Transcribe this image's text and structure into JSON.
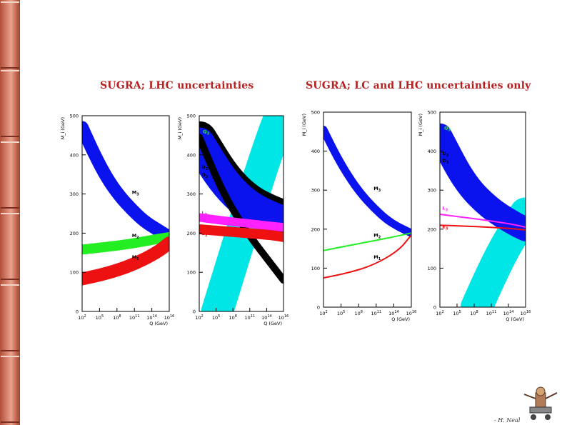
{
  "titles": {
    "left": "SUGRA; LHC uncertainties",
    "right": "SUGRA; LC and LHC uncertainties only"
  },
  "footer": {
    "credit": "- H. Neal"
  },
  "colors": {
    "blue": "#0a13ee",
    "green": "#22ee22",
    "red": "#ee1111",
    "cyan": "#00e6e6",
    "magenta": "#ff22ff",
    "black": "#000000",
    "title": "#b51f1f"
  },
  "chart_data": [
    {
      "type": "line",
      "title": "",
      "ylabel": "M_i (GeV)",
      "xlabel": "Q (GeV)",
      "xlog_range": [
        2,
        16
      ],
      "ylim": [
        0,
        500
      ],
      "xticks": [
        "10^2",
        "10^5",
        "10^8",
        "10^11",
        "10^14",
        "10^16"
      ],
      "yticks": [
        "0",
        "100",
        "200",
        "300",
        "400",
        "500"
      ],
      "series": [
        {
          "name": "M3",
          "color": "blue",
          "x": [
            2,
            4,
            6,
            8,
            10,
            12,
            14,
            16
          ],
          "values": [
            470,
            400,
            340,
            295,
            260,
            230,
            210,
            190
          ],
          "width": 18
        },
        {
          "name": "M2",
          "color": "green",
          "x": [
            2,
            6,
            10,
            14,
            16
          ],
          "values": [
            158,
            165,
            173,
            185,
            190
          ],
          "width": 14
        },
        {
          "name": "M1",
          "color": "red",
          "x": [
            2,
            6,
            10,
            14,
            16
          ],
          "values": [
            83,
            97,
            118,
            150,
            175
          ],
          "width": 18
        }
      ],
      "labels": [
        {
          "text": "M3",
          "x": 10,
          "y": 300,
          "color": "black"
        },
        {
          "text": "M2",
          "x": 10,
          "y": 190,
          "color": "black"
        },
        {
          "text": "M1",
          "x": 10,
          "y": 135,
          "color": "black"
        }
      ]
    },
    {
      "type": "line",
      "title": "",
      "ylabel": "M_i (GeV)",
      "xlabel": "Q (GeV)",
      "xlog_range": [
        2,
        16
      ],
      "ylim": [
        0,
        500
      ],
      "xticks": [
        "10^2",
        "10^5",
        "10^8",
        "10^11",
        "10^14",
        "10^16"
      ],
      "yticks": [
        "0",
        "100",
        "200",
        "300",
        "400",
        "500"
      ],
      "series": [
        {
          "name": "Hu",
          "color": "cyan",
          "x": [
            5,
            8,
            11,
            14,
            15.5
          ],
          "values": [
            0,
            150,
            300,
            440,
            500
          ],
          "width": 45
        },
        {
          "name": "Q3",
          "color": "black",
          "x": [
            2,
            6,
            10,
            14,
            16
          ],
          "values": [
            440,
            340,
            280,
            250,
            240
          ],
          "width": 50
        },
        {
          "name": "U3",
          "color": "blue",
          "x": [
            2,
            6,
            10,
            14,
            16
          ],
          "values": [
            430,
            330,
            270,
            240,
            230
          ],
          "width": 44
        },
        {
          "name": "D3",
          "color": "black",
          "x": [
            2,
            6,
            10,
            14,
            16
          ],
          "values": [
            445,
            300,
            200,
            120,
            80
          ],
          "width": 10
        },
        {
          "name": "L3",
          "color": "magenta",
          "x": [
            2,
            6,
            10,
            14,
            16
          ],
          "values": [
            240,
            232,
            225,
            218,
            215
          ],
          "width": 12
        },
        {
          "name": "E3",
          "color": "red",
          "x": [
            2,
            6,
            10,
            14,
            16
          ],
          "values": [
            210,
            205,
            200,
            195,
            190
          ],
          "width": 14
        }
      ],
      "labels": [
        {
          "text": "Q3",
          "x": 2.6,
          "y": 455,
          "color": "green"
        },
        {
          "text": "U3",
          "x": 2.4,
          "y": 365,
          "color": "black"
        },
        {
          "text": "D3",
          "x": 2.4,
          "y": 345,
          "color": "black"
        },
        {
          "text": "L3",
          "x": 2.4,
          "y": 248,
          "color": "magenta"
        },
        {
          "text": "E3",
          "x": 2.4,
          "y": 195,
          "color": "red"
        },
        {
          "text": "Hu",
          "x": 3.8,
          "y": 50,
          "color": "cyan"
        }
      ]
    },
    {
      "type": "line",
      "title": "",
      "ylabel": "M_i (GeV)",
      "xlabel": "Q (GeV)",
      "xlog_range": [
        2,
        16
      ],
      "ylim": [
        0,
        500
      ],
      "xticks": [
        "10^2",
        "10^5",
        "10^8",
        "10^11",
        "10^14",
        "10^16"
      ],
      "yticks": [
        "0",
        "100",
        "200",
        "300",
        "400",
        "500"
      ],
      "series": [
        {
          "name": "M3",
          "color": "blue",
          "x": [
            2,
            4,
            6,
            8,
            10,
            12,
            14,
            16
          ],
          "values": [
            455,
            390,
            335,
            290,
            255,
            225,
            205,
            190
          ],
          "width": 11
        },
        {
          "name": "M2",
          "color": "green",
          "x": [
            2,
            6,
            10,
            14,
            16
          ],
          "values": [
            145,
            158,
            170,
            183,
            190
          ],
          "width": 2
        },
        {
          "name": "M1",
          "color": "red",
          "x": [
            2,
            6,
            10,
            14,
            16
          ],
          "values": [
            75,
            88,
            108,
            145,
            185
          ],
          "width": 2
        }
      ],
      "labels": [
        {
          "text": "M3",
          "x": 10,
          "y": 300,
          "color": "black"
        },
        {
          "text": "M2",
          "x": 10,
          "y": 180,
          "color": "black"
        },
        {
          "text": "M1",
          "x": 10,
          "y": 125,
          "color": "black"
        }
      ]
    },
    {
      "type": "line",
      "title": "",
      "ylabel": "M_i (GeV)",
      "xlabel": "Q (GeV)",
      "xlog_range": [
        2,
        16
      ],
      "ylim": [
        0,
        500
      ],
      "xticks": [
        "10^2",
        "10^5",
        "10^8",
        "10^11",
        "10^14",
        "10^16"
      ],
      "yticks": [
        "0",
        "100",
        "200",
        "300",
        "400",
        "500"
      ],
      "series": [
        {
          "name": "Hu",
          "color": "cyan",
          "x": [
            8,
            10,
            12,
            14,
            16
          ],
          "values": [
            0,
            70,
            135,
            190,
            240
          ],
          "width": 45
        },
        {
          "name": "Q3",
          "color": "green",
          "x": [
            2,
            6,
            10,
            14,
            16
          ],
          "values": [
            450,
            340,
            270,
            230,
            210
          ],
          "width": 6
        },
        {
          "name": "U3",
          "color": "blue",
          "x": [
            2,
            6,
            10,
            14,
            16
          ],
          "values": [
            440,
            320,
            255,
            215,
            200
          ],
          "width": 34
        },
        {
          "name": "L3",
          "color": "magenta",
          "x": [
            2,
            6,
            10,
            14,
            16
          ],
          "values": [
            238,
            230,
            222,
            212,
            205
          ],
          "width": 2
        },
        {
          "name": "E3",
          "color": "red",
          "x": [
            2,
            6,
            10,
            14,
            16
          ],
          "values": [
            210,
            208,
            205,
            201,
            198
          ],
          "width": 2
        }
      ],
      "labels": [
        {
          "text": "Q3",
          "x": 2.7,
          "y": 455,
          "color": "green"
        },
        {
          "text": "U3",
          "x": 2.4,
          "y": 390,
          "color": "black"
        },
        {
          "text": "D3",
          "x": 2.4,
          "y": 372,
          "color": "black"
        },
        {
          "text": "L3",
          "x": 2.4,
          "y": 250,
          "color": "magenta"
        },
        {
          "text": "E3",
          "x": 2.4,
          "y": 202,
          "color": "red"
        },
        {
          "text": "Hu",
          "x": 7.5,
          "y": 60,
          "color": "cyan"
        }
      ]
    }
  ]
}
